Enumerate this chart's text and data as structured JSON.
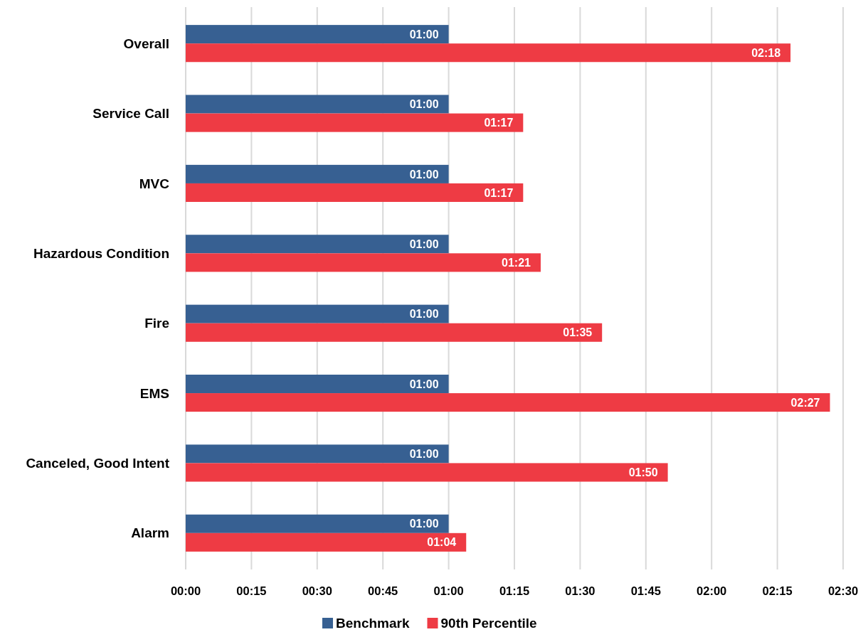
{
  "chart_data": {
    "type": "bar",
    "orientation": "horizontal",
    "categories": [
      "Overall",
      "Service Call",
      "MVC",
      "Hazardous Condition",
      "Fire",
      "EMS",
      "Canceled, Good Intent",
      "Alarm"
    ],
    "series": [
      {
        "name": "Benchmark",
        "color": "#376092",
        "values": [
          60,
          60,
          60,
          60,
          60,
          60,
          60,
          60
        ],
        "value_labels": [
          "01:00",
          "01:00",
          "01:00",
          "01:00",
          "01:00",
          "01:00",
          "01:00",
          "01:00"
        ]
      },
      {
        "name": "90th Percentile",
        "color": "#ee3b44",
        "values": [
          138,
          77,
          77,
          81,
          95,
          147,
          110,
          64
        ],
        "value_labels": [
          "02:18",
          "01:17",
          "01:17",
          "01:21",
          "01:35",
          "02:27",
          "01:50",
          "01:04"
        ]
      }
    ],
    "xlim": [
      0,
      150
    ],
    "xticks": [
      {
        "value": 0,
        "label": "00:00"
      },
      {
        "value": 15,
        "label": "00:15"
      },
      {
        "value": 30,
        "label": "00:30"
      },
      {
        "value": 45,
        "label": "00:45"
      },
      {
        "value": 60,
        "label": "01:00"
      },
      {
        "value": 75,
        "label": "01:15"
      },
      {
        "value": 90,
        "label": "01:30"
      },
      {
        "value": 105,
        "label": "01:45"
      },
      {
        "value": 120,
        "label": "02:00"
      },
      {
        "value": 135,
        "label": "02:15"
      },
      {
        "value": 150,
        "label": "02:30"
      }
    ],
    "grid": "x",
    "legend": "bottom"
  }
}
